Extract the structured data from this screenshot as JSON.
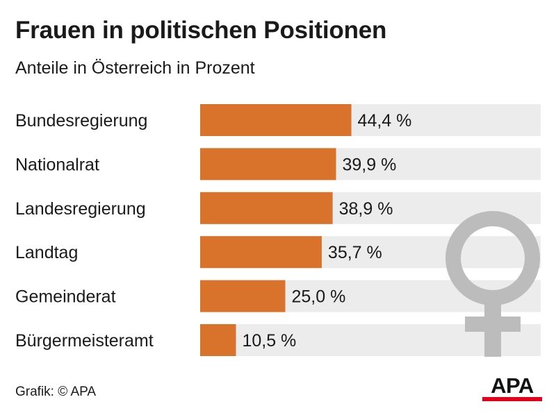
{
  "chart_data": {
    "type": "bar",
    "orientation": "horizontal",
    "title": "Frauen in politischen Positionen",
    "subtitle": "Anteile in Österreich in Prozent",
    "categories": [
      "Bundesregierung",
      "Nationalrat",
      "Landesregierung",
      "Landtag",
      "Gemeinderat",
      "Bürgermeisteramt"
    ],
    "values": [
      44.4,
      39.9,
      38.9,
      35.7,
      25.0,
      10.5
    ],
    "value_labels": [
      "44,4 %",
      "39,9 %",
      "38,9 %",
      "35,7 %",
      "25,0 %",
      "10,5 %"
    ],
    "xlim": [
      0,
      100
    ],
    "grid": false,
    "legend": "none",
    "colors": {
      "bar": "#d9722b",
      "track": "#ececec",
      "symbol": "#bcbcbc"
    }
  },
  "source": "Grafik: © APA",
  "logo": {
    "text": "APA",
    "accent": "#e2001a"
  },
  "decoration": {
    "icon": "female-symbol-icon"
  }
}
